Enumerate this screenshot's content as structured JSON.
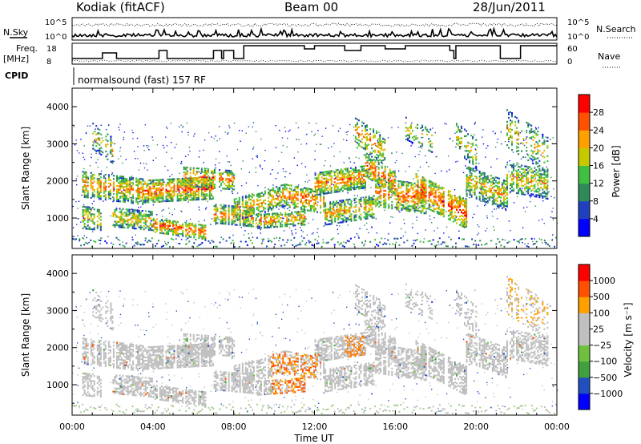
{
  "header": {
    "station": "Kodiak (fitACF)",
    "beam": "Beam 00",
    "date": "28/Jun/2011"
  },
  "strip_labels": {
    "nsky": "N.Sky",
    "nsearch": "N.Search",
    "freq_line1": "Freq.",
    "freq_line2": "[MHz]",
    "nave": "Nave",
    "cpid": "CPID",
    "cpid_text": "normalsound (fast) 157 RF"
  },
  "strip_ticks": {
    "noise_left": [
      "10^5",
      "10^0"
    ],
    "noise_right": [
      "10^5",
      "10^0"
    ],
    "freq_left": [
      "18",
      "8"
    ],
    "nave_right": [
      "60",
      "0"
    ]
  },
  "chart_data": [
    {
      "type": "heatmap",
      "ylabel": "Slant Range [km]",
      "yticks": [
        "1000",
        "2000",
        "3000",
        "4000"
      ],
      "ylim": [
        180,
        4500
      ],
      "colorbar": {
        "label": "Power [dB]",
        "ticks": [
          "4",
          "8",
          "12",
          "16",
          "20",
          "24",
          "28"
        ],
        "range": [
          0,
          30
        ]
      }
    },
    {
      "type": "heatmap",
      "ylabel": "Slant Range [km]",
      "yticks": [
        "1000",
        "2000",
        "3000",
        "4000"
      ],
      "ylim": [
        180,
        4500
      ],
      "colorbar": {
        "label": "Velocity [m s⁻¹]",
        "ticks": [
          "1000",
          "500",
          "100",
          "25",
          "−25",
          "−100",
          "−500",
          "−1000"
        ]
      }
    }
  ],
  "xaxis": {
    "label": "Time UT",
    "ticks": [
      "00:00",
      "04:00",
      "08:00",
      "12:00",
      "16:00",
      "20:00",
      "00:00"
    ],
    "range_hours": [
      0,
      24
    ]
  },
  "colors": {
    "power_scale": [
      "#0000ff",
      "#2040c0",
      "#2e8b57",
      "#40c040",
      "#c8c800",
      "#ffa000",
      "#ff5000",
      "#ff0000"
    ],
    "velocity_scale": [
      "#0000ff",
      "#2050c0",
      "#40a040",
      "#70c040",
      "#c0c0c0",
      "#c0c0c0",
      "#ffa000",
      "#ff5000",
      "#ff0000"
    ],
    "ground_scatter": "#bfbfbf"
  }
}
